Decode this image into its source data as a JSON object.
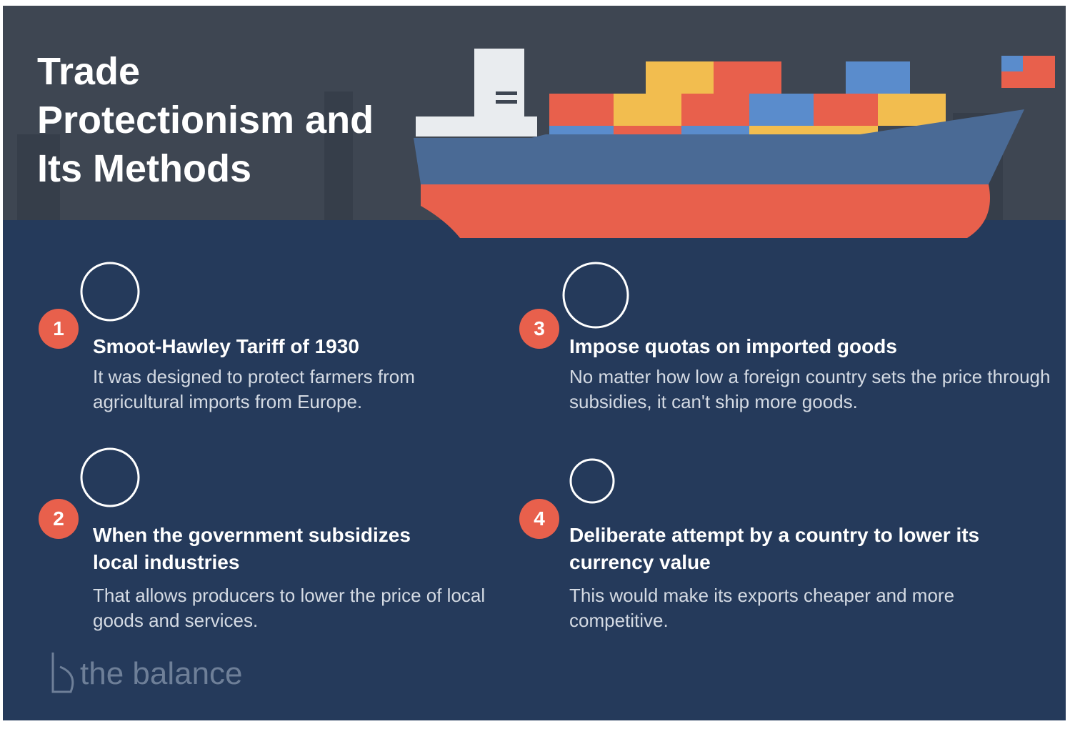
{
  "header": {
    "title": "Trade Protectionism and Its Methods"
  },
  "items": [
    {
      "number": "1",
      "heading": "Smoot-Hawley Tariff of 1930",
      "text": "It was designed to protect farmers from agricultural imports from Europe."
    },
    {
      "number": "2",
      "heading": "When the government subsidizes local industries",
      "text": "That allows producers to lower the price of local goods and services."
    },
    {
      "number": "3",
      "heading": "Impose quotas on imported goods",
      "text": "No matter how low a foreign country sets the price through subsidies, it can't ship more goods."
    },
    {
      "number": "4",
      "heading": "Deliberate attempt by a country to lower its currency value",
      "text": "This would make its exports cheaper and more competitive."
    }
  ],
  "footer": {
    "logo": "the balance"
  }
}
